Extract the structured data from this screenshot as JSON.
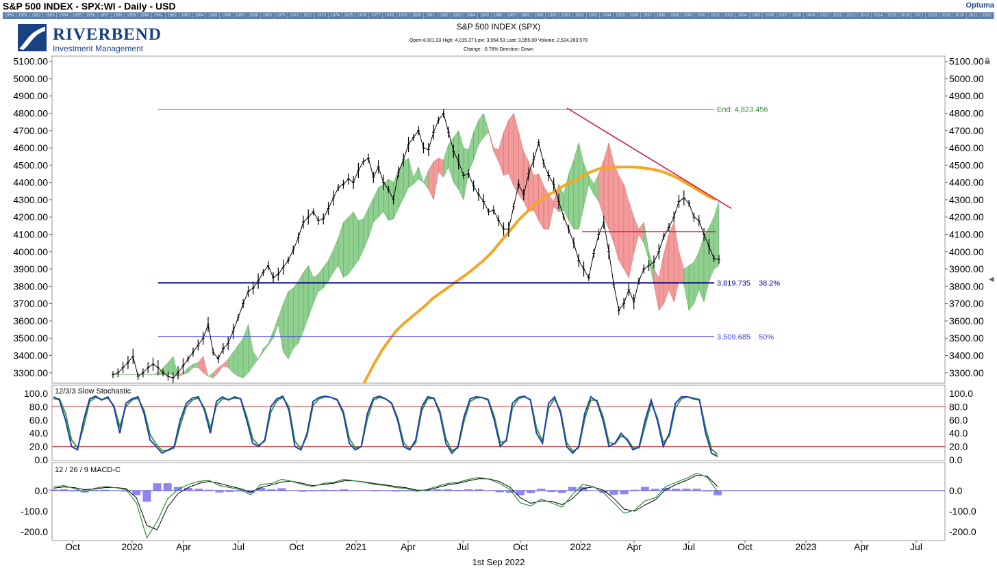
{
  "window": {
    "title": "S&P 500 INDEX - SPX:WI - Daily - USD",
    "brand": "Optuma",
    "year_strip": [
      "1950",
      "1951",
      "1952",
      "1953",
      "1954",
      "1955",
      "1956",
      "1957",
      "1958",
      "1959",
      "1960",
      "1961",
      "1962",
      "1963",
      "1964",
      "1965",
      "1966",
      "1967",
      "1968",
      "1969",
      "1970",
      "1971",
      "1972",
      "1973",
      "1974",
      "1975",
      "1976",
      "1977",
      "1978",
      "1979",
      "1980",
      "1981",
      "1982",
      "1983",
      "1984",
      "1985",
      "1986",
      "1987",
      "1988",
      "1989",
      "1990",
      "1991",
      "1992",
      "1993",
      "1994",
      "1995",
      "1996",
      "1997",
      "1998",
      "1999",
      "2000",
      "2001",
      "2002",
      "2003",
      "2004",
      "2005",
      "2006",
      "2007",
      "2008",
      "2009",
      "2010",
      "2011",
      "2012",
      "2013",
      "2014",
      "2015",
      "2016",
      "2017",
      "2018",
      "2019",
      "2020",
      "2021",
      "2022"
    ]
  },
  "logo": {
    "name": "RIVERBEND",
    "subtitle": "Investment Management"
  },
  "header": {
    "chart_title": "S&P 500 INDEX (SPX)",
    "ohlc_line": "Open:4,001.33   High: 4,015.37   Low: 3,954.53   Last: 3,955.00   Volume: 2,524,263,578",
    "change_line": "Change: -0.78%   Direction: Down"
  },
  "footer": {
    "date": "1st Sep 2022"
  },
  "colors": {
    "price": "#000000",
    "ma": "#f5a623",
    "cloud_bull": "#8fcf8f",
    "cloud_bear": "#f29b9b",
    "trendline": "#d4144a",
    "fib_382": "#00008b",
    "fib_50": "#4040e0",
    "fib_end": "#2e8b2e",
    "stoch_k": "#1c3fb0",
    "stoch_d": "#3a9a3a",
    "level_line": "#e03a3a",
    "macd_hist": "#7b6ff0"
  },
  "chart_data": [
    {
      "type": "line",
      "name": "price",
      "x_labels": [
        "Oct",
        "2020",
        "Apr",
        "Jul",
        "Oct",
        "2021",
        "Apr",
        "Jul",
        "Oct",
        "2022",
        "Apr",
        "Jul",
        "Oct",
        "2023",
        "Apr",
        "Jul"
      ],
      "y_ticks": [
        "3300.00",
        "3400.00",
        "3500.00",
        "3600.00",
        "3700.00",
        "3800.00",
        "3900.00",
        "4000.00",
        "4100.00",
        "4200.00",
        "4300.00",
        "4400.00",
        "4500.00",
        "4600.00",
        "4700.00",
        "4800.00",
        "4900.00",
        "5000.00",
        "5100.00"
      ],
      "ylim": [
        3240,
        5130
      ],
      "series": [
        {
          "values": [
            3290,
            3300,
            3330,
            3360,
            3395,
            3280,
            3300,
            3330,
            3350,
            3330,
            3300,
            3280,
            3270,
            3300,
            3340,
            3380,
            3420,
            3460,
            3500,
            3580,
            3420,
            3380,
            3440,
            3470,
            3540,
            3620,
            3700,
            3770,
            3790,
            3830,
            3880,
            3920,
            3850,
            3870,
            3910,
            3950,
            4010,
            4080,
            4170,
            4200,
            4230,
            4180,
            4190,
            4250,
            4310,
            4370,
            4390,
            4420,
            4400,
            4470,
            4520,
            4540,
            4430,
            4490,
            4400,
            4360,
            4300,
            4460,
            4530,
            4620,
            4660,
            4700,
            4600,
            4590,
            4690,
            4760,
            4800,
            4690,
            4580,
            4520,
            4440,
            4450,
            4380,
            4330,
            4290,
            4230,
            4240,
            4180,
            4130,
            4130,
            4260,
            4390,
            4330,
            4450,
            4530,
            4630,
            4510,
            4440,
            4390,
            4290,
            4200,
            4130,
            4050,
            3950,
            3900,
            3850,
            3990,
            4100,
            4170,
            4000,
            3810,
            3660,
            3700,
            3780,
            3710,
            3830,
            3900,
            3920,
            3940,
            4000,
            4090,
            4140,
            4200,
            4290,
            4310,
            4280,
            4200,
            4180,
            4100,
            4030,
            3960,
            3955
          ]
        }
      ]
    },
    {
      "type": "line",
      "name": "moving-average",
      "series": [
        {
          "values": [
            3020,
            3100,
            3200,
            3280,
            3360,
            3430,
            3490,
            3545,
            3585,
            3620,
            3655,
            3690,
            3730,
            3760,
            3790,
            3820,
            3850,
            3880,
            3915,
            3950,
            3990,
            4040,
            4090,
            4140,
            4190,
            4230,
            4270,
            4300,
            4330,
            4350,
            4380,
            4400,
            4420,
            4445,
            4465,
            4480,
            4485,
            4488,
            4489,
            4490,
            4488,
            4484,
            4478,
            4470,
            4458,
            4440,
            4420,
            4395,
            4370,
            4345,
            4320,
            4300
          ]
        }
      ]
    },
    {
      "type": "line",
      "name": "fibonacci-levels",
      "annotations": [
        {
          "label_value": "End:  4,823.456",
          "y": 4823.456
        },
        {
          "label_value": "3,819.735",
          "label_pct": "38.2%",
          "y": 3819.735
        },
        {
          "label_value": "3,509.685",
          "label_pct": "50%",
          "y": 3509.685
        }
      ],
      "trendline": {
        "from": 4830,
        "to": 4250
      },
      "support_line": 4115
    },
    {
      "type": "line",
      "name": "slow-stochastic",
      "title": "12/3/3 Slow Stochastic",
      "y_ticks": [
        "100.0",
        "80.0",
        "60.0",
        "40.0",
        "20.0",
        "0.0"
      ],
      "ylim": [
        0,
        100
      ],
      "levels": [
        80,
        20
      ],
      "series": [
        {
          "values": [
            95,
            90,
            60,
            20,
            15,
            60,
            92,
            96,
            90,
            95,
            80,
            40,
            85,
            92,
            95,
            70,
            30,
            20,
            10,
            15,
            20,
            60,
            85,
            93,
            95,
            75,
            40,
            88,
            95,
            90,
            95,
            92,
            60,
            25,
            20,
            30,
            80,
            92,
            96,
            75,
            20,
            15,
            40,
            88,
            94,
            96,
            94,
            90,
            70,
            25,
            15,
            20,
            70,
            93,
            96,
            92,
            85,
            60,
            20,
            15,
            30,
            80,
            95,
            93,
            70,
            25,
            10,
            20,
            65,
            92,
            95,
            94,
            90,
            60,
            20,
            30,
            85,
            94,
            96,
            90,
            40,
            25,
            85,
            95,
            70,
            20,
            10,
            20,
            70,
            95,
            88,
            60,
            20,
            25,
            40,
            30,
            15,
            20,
            60,
            90,
            60,
            20,
            40,
            85,
            95,
            95,
            92,
            90,
            40,
            10,
            5
          ]
        },
        {
          "values": [
            92,
            92,
            70,
            30,
            18,
            50,
            88,
            94,
            91,
            93,
            82,
            50,
            80,
            90,
            93,
            75,
            38,
            24,
            14,
            14,
            18,
            52,
            80,
            90,
            93,
            78,
            48,
            82,
            92,
            91,
            93,
            92,
            66,
            32,
            22,
            28,
            72,
            89,
            94,
            80,
            28,
            17,
            36,
            82,
            92,
            95,
            94,
            91,
            74,
            32,
            18,
            20,
            62,
            90,
            94,
            92,
            86,
            64,
            26,
            16,
            26,
            74,
            92,
            93,
            74,
            32,
            14,
            18,
            58,
            88,
            93,
            94,
            91,
            66,
            26,
            28,
            78,
            92,
            95,
            91,
            48,
            28,
            78,
            92,
            74,
            26,
            13,
            18,
            62,
            90,
            90,
            66,
            26,
            24,
            36,
            32,
            18,
            18,
            52,
            85,
            64,
            26,
            36,
            78,
            92,
            95,
            93,
            91,
            48,
            16,
            8
          ]
        }
      ]
    },
    {
      "type": "line",
      "name": "macd",
      "title": "12 / 26 / 9 MACD-C",
      "y_ticks": [
        "0.0",
        "-100.0",
        "-200.0"
      ],
      "ylim": [
        -235,
        90
      ],
      "series": [
        {
          "values": [
            18,
            25,
            10,
            -5,
            12,
            20,
            14,
            5,
            -60,
            -230,
            -150,
            -40,
            5,
            30,
            45,
            50,
            25,
            15,
            5,
            -20,
            30,
            35,
            55,
            45,
            30,
            20,
            35,
            40,
            55,
            48,
            40,
            30,
            25,
            15,
            10,
            -2,
            5,
            22,
            35,
            40,
            55,
            65,
            55,
            35,
            5,
            -60,
            -75,
            -40,
            -60,
            -80,
            -20,
            30,
            20,
            -10,
            -60,
            -110,
            -95,
            -50,
            -35,
            20,
            40,
            60,
            85,
            65,
            -5
          ]
        },
        {
          "values": [
            12,
            18,
            15,
            5,
            8,
            15,
            15,
            10,
            -35,
            -170,
            -190,
            -80,
            -15,
            15,
            35,
            45,
            35,
            22,
            10,
            -8,
            15,
            28,
            42,
            46,
            36,
            24,
            30,
            36,
            48,
            48,
            42,
            34,
            28,
            20,
            14,
            3,
            2,
            15,
            28,
            36,
            48,
            58,
            57,
            44,
            16,
            -35,
            -62,
            -50,
            -52,
            -68,
            -40,
            10,
            18,
            2,
            -38,
            -90,
            -100,
            -70,
            -45,
            5,
            30,
            50,
            75,
            70,
            20
          ]
        }
      ]
    }
  ]
}
